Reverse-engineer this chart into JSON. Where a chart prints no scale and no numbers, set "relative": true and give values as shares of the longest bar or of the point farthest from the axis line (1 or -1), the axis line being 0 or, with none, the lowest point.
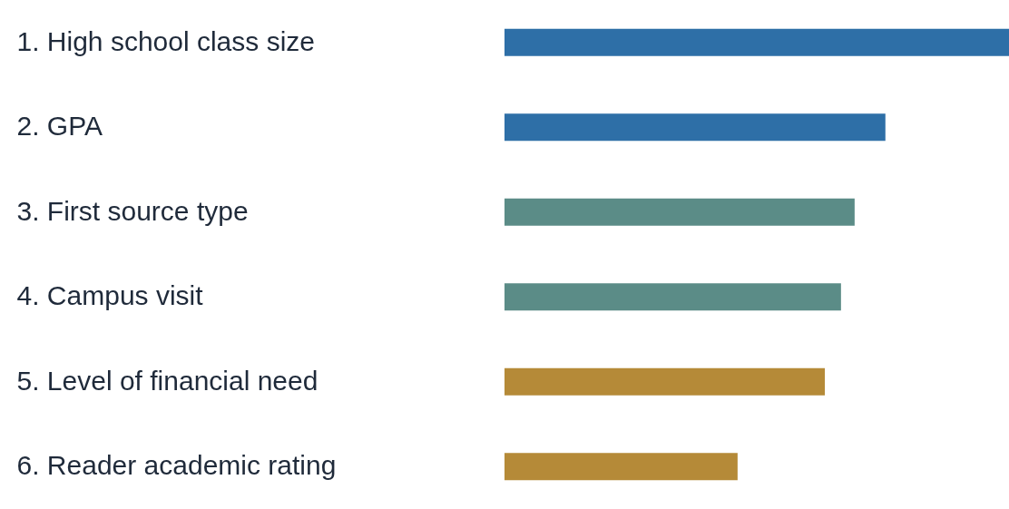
{
  "chart_data": {
    "type": "bar",
    "orientation": "horizontal",
    "relative": true,
    "categories": [
      "1. High school class size",
      "2. GPA",
      "3. First source type",
      "4. Campus visit",
      "5. Level of financial need",
      "6. Reader academic rating"
    ],
    "values": [
      1,
      0.755,
      0.694,
      0.667,
      0.635,
      0.462
    ],
    "colors": [
      "#2e6fa7",
      "#2e6fa7",
      "#5b8c87",
      "#5b8c87",
      "#b58a38",
      "#b58a38"
    ]
  }
}
